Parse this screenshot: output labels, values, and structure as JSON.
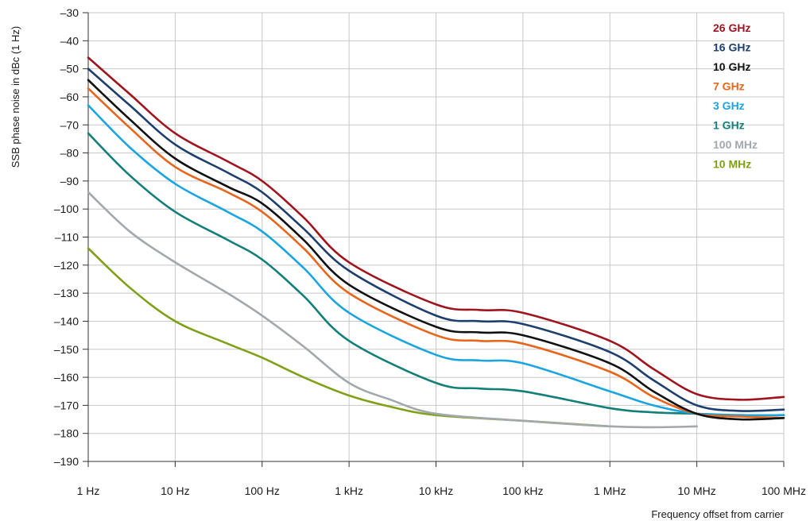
{
  "chart_data": {
    "type": "line",
    "title": "",
    "xlabel": "Frequency offset from carrier",
    "ylabel": "SSB phase noise in dBc (1 Hz)",
    "x_scale": "log",
    "x_unit": "Hz",
    "xlim": [
      1,
      100000000
    ],
    "ylim": [
      -190,
      -30
    ],
    "grid": true,
    "legend_position": "top-right",
    "x_ticks": [
      {
        "value": 1,
        "label": "1 Hz"
      },
      {
        "value": 10,
        "label": "10 Hz"
      },
      {
        "value": 100,
        "label": "100 Hz"
      },
      {
        "value": 1000,
        "label": "1 kHz"
      },
      {
        "value": 10000,
        "label": "10 kHz"
      },
      {
        "value": 100000,
        "label": "100 kHz"
      },
      {
        "value": 1000000,
        "label": "1 MHz"
      },
      {
        "value": 10000000,
        "label": "10 MHz"
      },
      {
        "value": 100000000,
        "label": "100 MHz"
      }
    ],
    "y_ticks": [
      {
        "value": -30,
        "label": "–30"
      },
      {
        "value": -40,
        "label": "–40"
      },
      {
        "value": -50,
        "label": "–50"
      },
      {
        "value": -60,
        "label": "–60"
      },
      {
        "value": -70,
        "label": "–70"
      },
      {
        "value": -80,
        "label": "–80"
      },
      {
        "value": -90,
        "label": "–90"
      },
      {
        "value": -100,
        "label": "–100"
      },
      {
        "value": -110,
        "label": "–110"
      },
      {
        "value": -120,
        "label": "–120"
      },
      {
        "value": -130,
        "label": "–130"
      },
      {
        "value": -140,
        "label": "–140"
      },
      {
        "value": -150,
        "label": "–150"
      },
      {
        "value": -160,
        "label": "–160"
      },
      {
        "value": -170,
        "label": "–170"
      },
      {
        "value": -180,
        "label": "–180"
      },
      {
        "value": -190,
        "label": "–190"
      }
    ],
    "series": [
      {
        "name": "26 GHz",
        "color": "#a0141e",
        "x": [
          1,
          3,
          10,
          40,
          100,
          300,
          1000,
          10000,
          31600,
          100000,
          1000000,
          3160000,
          10000000,
          31600000,
          100000000
        ],
        "y": [
          -46,
          -59,
          -73,
          -83,
          -90,
          -103,
          -119,
          -134,
          -136,
          -137,
          -147,
          -157,
          -166,
          -168,
          -167
        ]
      },
      {
        "name": "16 GHz",
        "color": "#1d3f6e",
        "x": [
          1,
          3,
          10,
          40,
          100,
          300,
          1000,
          10000,
          31600,
          100000,
          1000000,
          3160000,
          10000000,
          31600000,
          100000000
        ],
        "y": [
          -50,
          -63,
          -77,
          -87,
          -94,
          -107,
          -122,
          -138,
          -140,
          -141,
          -151,
          -161,
          -170,
          -172,
          -171.5
        ]
      },
      {
        "name": "10 GHz",
        "color": "#111111",
        "x": [
          1,
          3,
          10,
          40,
          100,
          300,
          1000,
          10000,
          31600,
          100000,
          1000000,
          3160000,
          10000000,
          31600000,
          100000000
        ],
        "y": [
          -54,
          -68,
          -82,
          -92,
          -98,
          -111,
          -127,
          -142,
          -144,
          -145,
          -155,
          -165,
          -173,
          -175,
          -174.5
        ]
      },
      {
        "name": "7 GHz",
        "color": "#e8661c",
        "x": [
          1,
          3,
          10,
          40,
          100,
          300,
          1000,
          10000,
          31600,
          100000,
          1000000,
          3160000,
          10000000,
          31600000,
          100000000
        ],
        "y": [
          -57,
          -71,
          -85,
          -94,
          -101,
          -114,
          -130,
          -145,
          -147,
          -148,
          -158,
          -167,
          -173,
          -174,
          -174.5
        ]
      },
      {
        "name": "3 GHz",
        "color": "#1ba5e0",
        "x": [
          1,
          3,
          10,
          40,
          100,
          300,
          1000,
          10000,
          31600,
          100000,
          1000000,
          3160000,
          10000000,
          31600000,
          100000000
        ],
        "y": [
          -63,
          -78,
          -91,
          -101,
          -108,
          -121,
          -137,
          -152,
          -154,
          -155,
          -165,
          -170,
          -173,
          -173.5,
          -173.5
        ]
      },
      {
        "name": "1 GHz",
        "color": "#127f79",
        "x": [
          1,
          3,
          10,
          40,
          100,
          300,
          1000,
          10000,
          31600,
          100000,
          1000000,
          3160000,
          10000000,
          31600000,
          100000000
        ],
        "y": [
          -73,
          -88,
          -101,
          -111,
          -118,
          -131,
          -147,
          -162,
          -164,
          -165,
          -171,
          -172.5,
          -173,
          -173.5,
          -173.5
        ]
      },
      {
        "name": "100 MHz",
        "color": "#a3a8ac",
        "x": [
          1,
          3,
          10,
          40,
          100,
          300,
          1000,
          3000,
          10000,
          100000,
          1000000,
          3160000,
          10000000
        ],
        "y": [
          -94,
          -108,
          -119,
          -130,
          -138,
          -149,
          -162,
          -168,
          -173,
          -175.5,
          -177.5,
          -177.8,
          -177.5
        ]
      },
      {
        "name": "10 MHz",
        "color": "#80a017",
        "x": [
          1,
          3,
          10,
          40,
          100,
          300,
          1000,
          3000,
          10000,
          100000,
          1000000
        ],
        "y": [
          -114,
          -128,
          -140,
          -148,
          -153,
          -160,
          -166.5,
          -170.5,
          -173.5,
          -175.5,
          -177.5
        ]
      }
    ]
  }
}
